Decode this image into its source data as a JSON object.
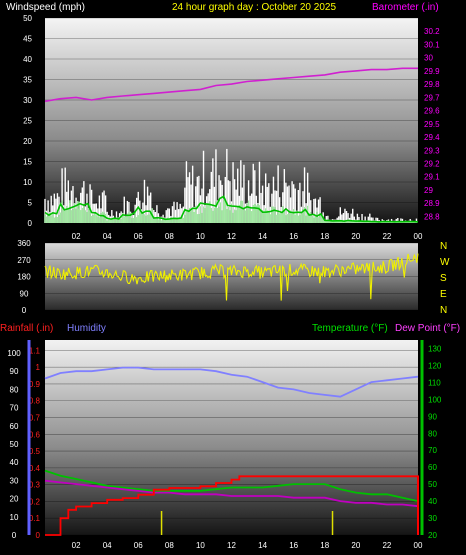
{
  "header": {
    "windspeed_label": "Windspeed (mph)",
    "title": "24 hour graph day : October 20 2025",
    "barometer_label": "Barometer (.in)"
  },
  "footer": {
    "rainfall_label": "Rainfall (.in)",
    "humidity_label": "Humidity",
    "temperature_label": "Temperature (°F)",
    "dewpoint_label": "Dew Point (°F)"
  },
  "x_ticks": [
    "02",
    "04",
    "06",
    "08",
    "10",
    "12",
    "14",
    "16",
    "18",
    "20",
    "22",
    "00"
  ],
  "direction_letters": [
    "N",
    "W",
    "S",
    "E",
    "N"
  ],
  "colors": {
    "barometer": "#d020d0",
    "wind_gust": "#ffffff",
    "wind_avg": "#00c000",
    "wind_dir": "#f0f000",
    "humidity": "#8080ff",
    "temperature": "#00c000",
    "dewpoint": "#c000c0",
    "rainfall": "#ff0000",
    "header_title": "#ffff00"
  },
  "chart_data": [
    {
      "type": "area",
      "name": "wind",
      "x_range": [
        0,
        24
      ],
      "y_left_ticks": [
        "0",
        "5",
        "10",
        "15",
        "20",
        "25",
        "30",
        "35",
        "40",
        "45",
        "50"
      ],
      "y_left_range": [
        0,
        50
      ],
      "y_right_ticks": [
        "28.8",
        "28.9",
        "29",
        "29.1",
        "29.2",
        "29.3",
        "29.4",
        "29.5",
        "29.6",
        "29.7",
        "29.8",
        "29.9",
        "30",
        "30.1",
        "30.2"
      ],
      "y_right_range": [
        28.75,
        30.3
      ],
      "gust_hourly": [
        7,
        10,
        9,
        6,
        3,
        5,
        9,
        4,
        4,
        11,
        13,
        14,
        12,
        11,
        10,
        11,
        10,
        6,
        2,
        3,
        2,
        1,
        1,
        1
      ],
      "avg_hourly": [
        2,
        4,
        4,
        2,
        1,
        2,
        3,
        1,
        1,
        3,
        4,
        5,
        4,
        4,
        3,
        3,
        3,
        2,
        0.5,
        0.5,
        0.5,
        0.3,
        0.3,
        0.3
      ],
      "barometer": {
        "x": [
          0,
          1,
          2,
          3,
          4,
          5,
          6,
          7,
          8,
          9,
          10,
          11,
          12,
          13,
          14,
          15,
          16,
          17,
          18,
          19,
          20,
          21,
          22,
          23,
          24
        ],
        "y": [
          29.67,
          29.69,
          29.7,
          29.68,
          29.7,
          29.71,
          29.72,
          29.73,
          29.74,
          29.75,
          29.76,
          29.79,
          29.8,
          29.82,
          29.83,
          29.84,
          29.85,
          29.86,
          29.87,
          29.89,
          29.9,
          29.91,
          29.91,
          29.92,
          29.92
        ]
      }
    },
    {
      "type": "scatter",
      "name": "wind_direction",
      "y_ticks": [
        "360",
        "270",
        "180",
        "90",
        "0"
      ],
      "y_range": [
        0,
        360
      ],
      "x": [
        0,
        1,
        2,
        3,
        4,
        5,
        6,
        7,
        8,
        9,
        10,
        11,
        12,
        13,
        14,
        15,
        16,
        17,
        18,
        19,
        20,
        21,
        22,
        23,
        24
      ],
      "y": [
        210,
        195,
        200,
        210,
        200,
        180,
        170,
        180,
        185,
        190,
        200,
        210,
        205,
        210,
        200,
        210,
        215,
        210,
        205,
        215,
        220,
        225,
        230,
        260,
        290
      ]
    },
    {
      "type": "line",
      "name": "rain_humidity_temp",
      "left_outer_ticks": [
        "0",
        "10",
        "20",
        "30",
        "40",
        "50",
        "60",
        "70",
        "80",
        "90",
        "100"
      ],
      "left_inner_ticks": [
        "0",
        "0.1",
        "0.2",
        "0.3",
        "0.4",
        "0.5",
        "0.6",
        "0.7",
        "0.8",
        "0.9",
        "1",
        "1.1"
      ],
      "right_ticks": [
        "20",
        "30",
        "40",
        "50",
        "60",
        "70",
        "80",
        "90",
        "100",
        "110",
        "120",
        "130"
      ],
      "humidity_range": [
        0,
        100
      ],
      "rain_range": [
        0,
        1.15
      ],
      "temp_range": [
        20,
        135
      ],
      "series": [
        {
          "name": "Humidity",
          "x": [
            0,
            1,
            2,
            3,
            4,
            5,
            6,
            7,
            8,
            9,
            10,
            11,
            12,
            13,
            14,
            15,
            16,
            17,
            18,
            19,
            20,
            21,
            22,
            23,
            24
          ],
          "y": [
            86,
            89,
            90,
            90,
            91,
            92,
            92,
            91,
            91,
            91,
            91,
            90,
            88,
            87,
            84,
            81,
            80,
            78,
            77,
            76,
            80,
            84,
            85,
            86,
            87
          ]
        },
        {
          "name": "Temperature",
          "x": [
            0,
            1,
            2,
            3,
            4,
            5,
            6,
            7,
            8,
            9,
            10,
            11,
            12,
            13,
            14,
            15,
            16,
            17,
            18,
            19,
            20,
            21,
            22,
            23,
            24
          ],
          "y": [
            58,
            55,
            53,
            51,
            49,
            48,
            47,
            46,
            46,
            46,
            46,
            47,
            48,
            48,
            48,
            49,
            50,
            50,
            50,
            47,
            45,
            44,
            44,
            42,
            40
          ]
        },
        {
          "name": "Dew Point",
          "x": [
            0,
            1,
            2,
            3,
            4,
            5,
            6,
            7,
            8,
            9,
            10,
            11,
            12,
            13,
            14,
            15,
            16,
            17,
            18,
            19,
            20,
            21,
            22,
            23,
            24
          ],
          "y": [
            52,
            51,
            50,
            49,
            48,
            47,
            46,
            45,
            45,
            44,
            44,
            44,
            43,
            43,
            43,
            43,
            42,
            42,
            42,
            40,
            39,
            39,
            38,
            38,
            37
          ]
        },
        {
          "name": "Rainfall",
          "x": [
            0,
            0.5,
            1,
            1.5,
            2,
            3,
            4,
            5,
            6,
            7,
            8,
            9,
            10,
            11,
            12,
            12.5,
            13,
            14,
            15,
            16,
            17,
            18,
            19,
            20,
            21,
            22,
            23,
            23.9,
            24
          ],
          "y": [
            0,
            0,
            0.1,
            0.15,
            0.17,
            0.19,
            0.21,
            0.22,
            0.24,
            0.27,
            0.28,
            0.28,
            0.29,
            0.31,
            0.33,
            0.35,
            0.35,
            0.35,
            0.35,
            0.35,
            0.35,
            0.35,
            0.35,
            0.35,
            0.35,
            0.35,
            0.35,
            0.35,
            0.16
          ]
        }
      ]
    }
  ]
}
